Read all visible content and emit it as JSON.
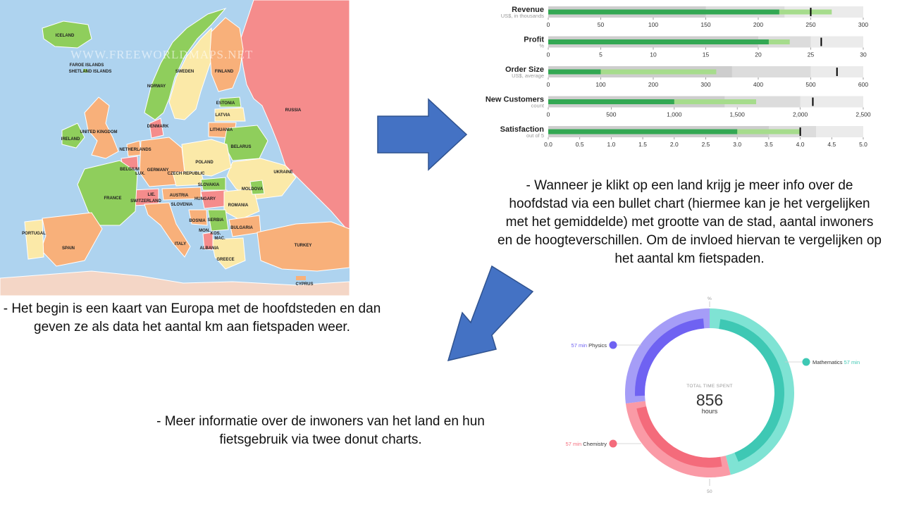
{
  "map": {
    "watermark": "WWW.FREEWORLDMAPS.NET",
    "countries": [
      "FAROE ISLANDS",
      "ICELAND",
      "NORWAY",
      "SWEDEN",
      "FINLAND",
      "ESTONIA",
      "LATVIA",
      "LITHUANIA",
      "RUSSIA",
      "BELARUS",
      "UKRAINE",
      "POLAND",
      "DENMARK",
      "NETHERLANDS",
      "BELGIUM",
      "LUX.",
      "GERMANY",
      "CZECH REPUBLIC",
      "SLOVAKIA",
      "AUSTRIA",
      "HUNGARY",
      "SWITZERLAND",
      "LIE.",
      "MOLDOVA",
      "ROMANIA",
      "BULGARIA",
      "SERBIA",
      "BOSNIA",
      "SLOVENIA",
      "ITALY",
      "FRANCE",
      "SPAIN",
      "PORTUGAL",
      "GREECE",
      "ALBANIA",
      "MAC.",
      "KOS.",
      "MON.",
      "TURKEY",
      "CYPRUS",
      "IRELAND",
      "UNITED KINGDOM",
      "SHETLAND ISLANDS"
    ]
  },
  "bullet_chart": {
    "type": "bullet",
    "rows": [
      {
        "title": "Revenue",
        "subtitle": "US$, in thousands",
        "max": 300,
        "ticks": [
          0,
          50,
          100,
          150,
          200,
          250,
          300
        ],
        "ranges": [
          150,
          225,
          300
        ],
        "measures": [
          220,
          270
        ],
        "marker": 250
      },
      {
        "title": "Profit",
        "subtitle": "%",
        "max": 30,
        "ticks": [
          0,
          5,
          10,
          15,
          20,
          25,
          30
        ],
        "ranges": [
          20,
          25,
          30
        ],
        "measures": [
          21,
          23
        ],
        "marker": 26
      },
      {
        "title": "Order Size",
        "subtitle": "US$, average",
        "max": 600,
        "ticks": [
          0,
          100,
          200,
          300,
          400,
          500,
          600
        ],
        "ranges": [
          350,
          500,
          600
        ],
        "measures": [
          100,
          320
        ],
        "marker": 550
      },
      {
        "title": "New Customers",
        "subtitle": "count",
        "max": 2500,
        "ticks": [
          "0",
          "500",
          "1,000",
          "1,500",
          "2,000",
          "2,500"
        ],
        "tick_values": [
          0,
          500,
          1000,
          1500,
          2000,
          2500
        ],
        "ranges": [
          1400,
          2000,
          2500
        ],
        "measures": [
          1000,
          1650
        ],
        "marker": 2100
      },
      {
        "title": "Satisfaction",
        "subtitle": "out of 5",
        "max": 5,
        "ticks": [
          "0.0",
          "0.5",
          "1.0",
          "1.5",
          "2.0",
          "2.5",
          "3.0",
          "3.5",
          "4.0",
          "4.5",
          "5.0"
        ],
        "tick_values": [
          0,
          0.5,
          1,
          1.5,
          2,
          2.5,
          3,
          3.5,
          4,
          4.5,
          5
        ],
        "ranges": [
          3.5,
          4.25,
          5
        ],
        "measures": [
          3.0,
          4.0
        ],
        "marker": 4.0
      }
    ]
  },
  "donut_chart": {
    "type": "pie",
    "center_label": "TOTAL TIME SPENT",
    "center_value": "856",
    "center_unit": "hours",
    "top_label": "%",
    "bottom_label": "50",
    "segments": [
      {
        "name": "Mathematics",
        "value_label": "57 min",
        "value": 46,
        "color": "#3ec8b4",
        "light": "#7fe3d4"
      },
      {
        "name": "Chemistry",
        "value_label": "57 min",
        "value": 27,
        "color": "#f46b7b",
        "light": "#fa9aa6"
      },
      {
        "name": "Physics",
        "value_label": "57 min",
        "value": 27,
        "color": "#6f62f2",
        "light": "#a59df7"
      }
    ]
  },
  "texts": {
    "map_description": "- Het begin is een kaart van Europa met de hoofdsteden en dan geven ze als data het aantal km aan fietspaden weer.",
    "bullet_description": "- Wanneer je klikt op een land krijg je meer info over de hoofdstad via een bullet chart (hiermee kan je het vergelijken met het gemiddelde) met grootte van de stad, aantal inwoners en de hoogteverschillen. Om de invloed hiervan te vergelijken op het aantal km fietspaden.",
    "donut_description": "- Meer informatie over de inwoners van het land en hun fietsgebruik via twee donut charts."
  },
  "colors": {
    "arrow": "#4472c4",
    "arrow_border": "#2f528f"
  }
}
